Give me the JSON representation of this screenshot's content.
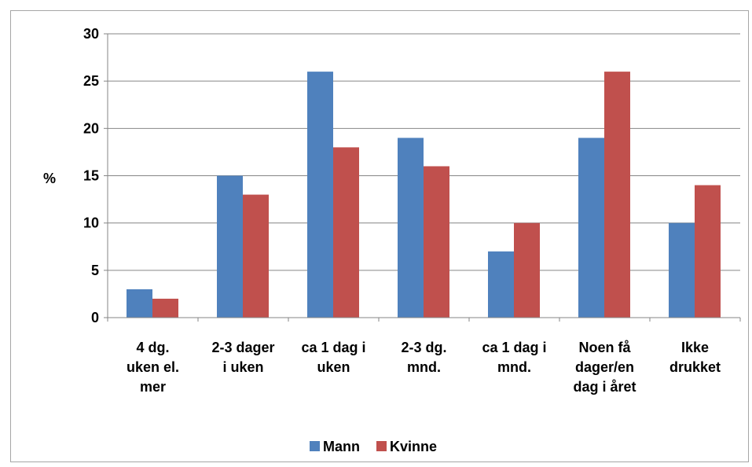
{
  "chart_data": {
    "type": "bar",
    "title": "",
    "ylabel": "%",
    "xlabel": "",
    "ylim": [
      0,
      30
    ],
    "yticks": [
      0,
      5,
      10,
      15,
      20,
      25,
      30
    ],
    "grid": true,
    "legend_position": "bottom",
    "categories": [
      [
        "4 dg.",
        "uken el.",
        "mer"
      ],
      [
        "2-3 dager",
        "i uken"
      ],
      [
        "ca 1 dag i",
        "uken"
      ],
      [
        "2-3 dg.",
        "mnd."
      ],
      [
        "ca 1 dag i",
        "mnd."
      ],
      [
        "Noen få",
        "dager/en",
        "dag i året"
      ],
      [
        "Ikke",
        "drukket"
      ]
    ],
    "series": [
      {
        "name": "Mann",
        "color": "#4f81bd",
        "values": [
          3,
          15,
          26,
          19,
          7,
          19,
          10
        ]
      },
      {
        "name": "Kvinne",
        "color": "#c0504d",
        "values": [
          2,
          13,
          18,
          16,
          10,
          26,
          14
        ]
      }
    ]
  }
}
